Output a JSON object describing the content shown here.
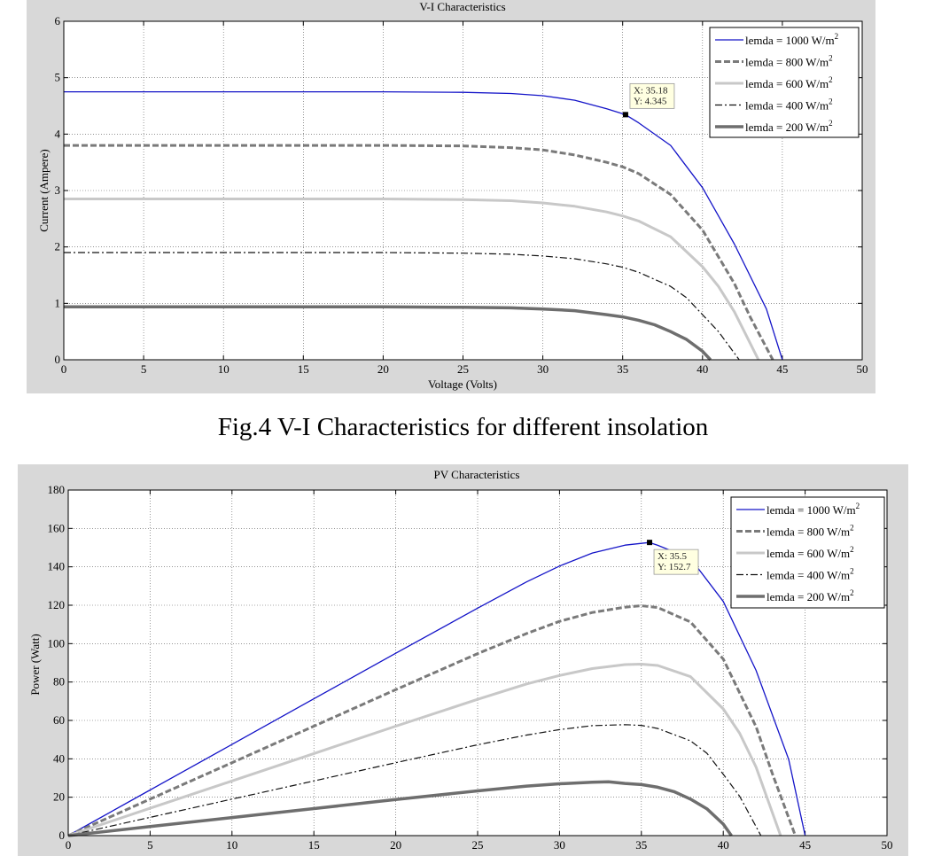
{
  "caption": "Fig.4 V-I Characteristics for different insolation",
  "legend": {
    "entries": [
      {
        "label": "lemda = 1000 W/m",
        "sup": "2",
        "color": "#1414c8",
        "dash": "",
        "width": 1.3
      },
      {
        "label": "lemda = 800 W/m",
        "sup": "2",
        "color": "#7a7a7a",
        "dash": "7,3",
        "width": 3
      },
      {
        "label": "lemda = 600 W/m",
        "sup": "2",
        "color": "#c8c8c8",
        "dash": "",
        "width": 3
      },
      {
        "label": "lemda = 400 W/m",
        "sup": "2",
        "color": "#111111",
        "dash": "8,3,2,3",
        "width": 1.2
      },
      {
        "label": "lemda = 200 W/m",
        "sup": "2",
        "color": "#6e6e6e",
        "dash": "",
        "width": 3.5
      }
    ]
  },
  "chart_data": [
    {
      "type": "line",
      "title": "V-I Characteristics",
      "xlabel": "Voltage (Volts)",
      "ylabel": "Current (Ampere)",
      "xlim": [
        0,
        50
      ],
      "ylim": [
        0,
        6
      ],
      "xticks": [
        0,
        5,
        10,
        15,
        20,
        25,
        30,
        35,
        40,
        45,
        50
      ],
      "yticks": [
        0,
        1,
        2,
        3,
        4,
        5,
        6
      ],
      "grid": true,
      "legend_position": "top-right",
      "series": [
        {
          "name": "lemda = 1000 W/m2",
          "x": [
            0,
            5,
            10,
            15,
            20,
            25,
            28,
            30,
            32,
            34,
            35.18,
            36,
            38,
            40,
            42,
            44,
            45
          ],
          "y": [
            4.75,
            4.75,
            4.75,
            4.75,
            4.75,
            4.74,
            4.72,
            4.68,
            4.6,
            4.45,
            4.345,
            4.2,
            3.8,
            3.05,
            2.05,
            0.9,
            0
          ]
        },
        {
          "name": "lemda = 800 W/m2",
          "x": [
            0,
            5,
            10,
            15,
            20,
            25,
            28,
            30,
            32,
            34,
            35,
            36,
            38,
            40,
            42,
            43,
            44.4
          ],
          "y": [
            3.8,
            3.8,
            3.8,
            3.8,
            3.8,
            3.79,
            3.76,
            3.72,
            3.63,
            3.5,
            3.42,
            3.3,
            2.93,
            2.3,
            1.35,
            0.75,
            0
          ]
        },
        {
          "name": "lemda = 600 W/m2",
          "x": [
            0,
            5,
            10,
            15,
            20,
            25,
            28,
            30,
            32,
            34,
            35,
            36,
            38,
            40,
            41,
            42,
            43.5
          ],
          "y": [
            2.85,
            2.85,
            2.85,
            2.85,
            2.85,
            2.84,
            2.82,
            2.78,
            2.72,
            2.62,
            2.55,
            2.46,
            2.18,
            1.65,
            1.3,
            0.85,
            0
          ]
        },
        {
          "name": "lemda = 400 W/m2",
          "x": [
            0,
            5,
            10,
            15,
            20,
            25,
            28,
            30,
            32,
            34,
            35,
            36,
            38,
            39,
            40,
            41,
            42.3
          ],
          "y": [
            1.9,
            1.9,
            1.9,
            1.9,
            1.9,
            1.89,
            1.87,
            1.84,
            1.79,
            1.7,
            1.64,
            1.55,
            1.3,
            1.1,
            0.8,
            0.5,
            0
          ]
        },
        {
          "name": "lemda = 200 W/m2",
          "x": [
            0,
            5,
            10,
            15,
            20,
            25,
            28,
            30,
            32,
            34,
            35,
            36,
            37,
            38,
            39,
            40,
            40.5
          ],
          "y": [
            0.94,
            0.94,
            0.94,
            0.94,
            0.94,
            0.93,
            0.92,
            0.9,
            0.87,
            0.8,
            0.76,
            0.7,
            0.62,
            0.5,
            0.36,
            0.15,
            0
          ]
        }
      ],
      "datatip": {
        "x": 35.18,
        "y": 4.345,
        "lines": [
          "X: 35.18",
          "Y: 4.345"
        ]
      }
    },
    {
      "type": "line",
      "title": "PV Characteristics",
      "xlabel": "",
      "ylabel": "Power (Watt)",
      "xlim": [
        0,
        50
      ],
      "ylim": [
        0,
        180
      ],
      "xticks": [
        0,
        5,
        10,
        15,
        20,
        25,
        30,
        35,
        40,
        45,
        50
      ],
      "yticks": [
        0,
        20,
        40,
        60,
        80,
        100,
        120,
        140,
        160,
        180
      ],
      "grid": true,
      "legend_position": "top-right",
      "series": [
        {
          "name": "lemda = 1000 W/m2",
          "x": [
            0,
            5,
            10,
            15,
            20,
            25,
            28,
            30,
            32,
            34,
            35.5,
            36,
            38,
            40,
            42,
            44,
            45
          ],
          "y": [
            0,
            23.75,
            47.5,
            71.25,
            95,
            118.5,
            132.2,
            140.4,
            147.2,
            151.3,
            152.7,
            151.2,
            144.4,
            122,
            86.1,
            39.6,
            0
          ]
        },
        {
          "name": "lemda = 800 W/m2",
          "x": [
            0,
            5,
            10,
            15,
            20,
            25,
            28,
            30,
            32,
            34,
            35,
            36,
            38,
            40,
            42,
            43,
            44.4
          ],
          "y": [
            0,
            19,
            38,
            57,
            76,
            94.8,
            105.3,
            111.6,
            116.2,
            119,
            119.7,
            118.8,
            111.3,
            92,
            56.7,
            32.3,
            0
          ]
        },
        {
          "name": "lemda = 600 W/m2",
          "x": [
            0,
            5,
            10,
            15,
            20,
            25,
            28,
            30,
            32,
            34,
            35,
            36,
            38,
            40,
            41,
            42,
            43.5
          ],
          "y": [
            0,
            14.25,
            28.5,
            42.75,
            57,
            71,
            79,
            83.4,
            87,
            89.1,
            89.3,
            88.6,
            82.8,
            66,
            53.3,
            35.7,
            0
          ]
        },
        {
          "name": "lemda = 400 W/m2",
          "x": [
            0,
            5,
            10,
            15,
            20,
            25,
            28,
            30,
            32,
            34,
            35,
            36,
            38,
            39,
            40,
            41,
            42.3
          ],
          "y": [
            0,
            9.5,
            19,
            28.5,
            38,
            47.3,
            52.4,
            55.2,
            57.3,
            57.8,
            57.4,
            55.8,
            49.4,
            42.9,
            32,
            20.5,
            0
          ]
        },
        {
          "name": "lemda = 200 W/m2",
          "x": [
            0,
            5,
            10,
            15,
            20,
            25,
            28,
            30,
            32,
            33,
            34,
            35,
            36,
            37,
            38,
            39,
            40,
            40.5
          ],
          "y": [
            0,
            4.7,
            9.4,
            14.1,
            18.8,
            23.3,
            25.8,
            27,
            27.8,
            28,
            27.2,
            26.6,
            25.2,
            22.9,
            19,
            14,
            6,
            0
          ]
        }
      ],
      "datatip": {
        "x": 35.5,
        "y": 152.7,
        "lines": [
          "X: 35.5",
          "Y: 152.7"
        ]
      }
    }
  ]
}
